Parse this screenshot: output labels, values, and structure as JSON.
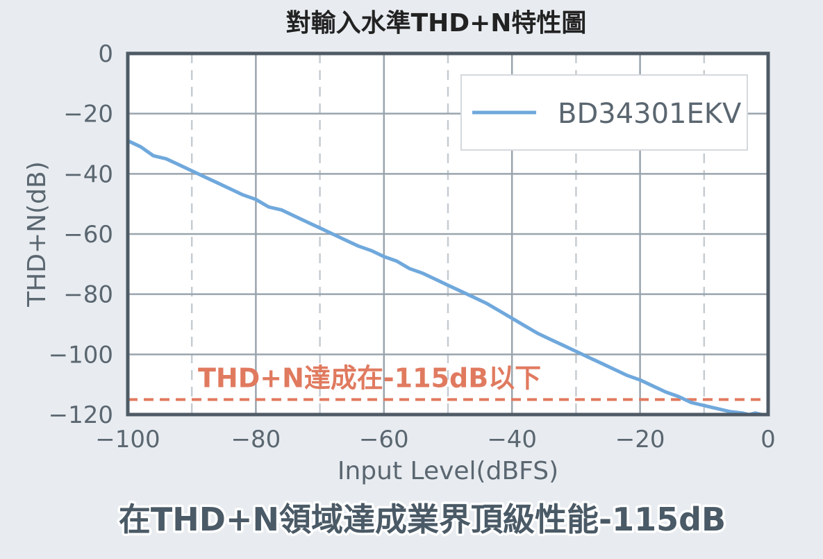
{
  "chart_data": {
    "type": "line",
    "title": "對輸入水準THD+N特性圖",
    "xlabel": "Input Level(dBFS)",
    "ylabel": "THD+N(dB)",
    "xlim": [
      -100,
      0
    ],
    "ylim": [
      -120,
      0
    ],
    "x_ticks": [
      -100,
      -80,
      -60,
      -40,
      -20,
      0
    ],
    "y_ticks": [
      0,
      -20,
      -40,
      -60,
      -80,
      -100,
      -120
    ],
    "x_tick_labels": [
      "−100",
      "−80",
      "−60",
      "−40",
      "−20",
      "0"
    ],
    "y_tick_labels": [
      "0",
      "−20",
      "−40",
      "−60",
      "−80",
      "−100",
      "−120"
    ],
    "grid": true,
    "legend_position": "top-right",
    "series": [
      {
        "name": "BD34301EKV",
        "color": "#6fa8dc",
        "x": [
          -100,
          -98,
          -96,
          -94,
          -92,
          -90,
          -88,
          -86,
          -84,
          -82,
          -80,
          -78,
          -76,
          -74,
          -72,
          -70,
          -68,
          -66,
          -64,
          -62,
          -60,
          -58,
          -56,
          -54,
          -52,
          -50,
          -48,
          -46,
          -44,
          -42,
          -40,
          -38,
          -36,
          -34,
          -32,
          -30,
          -28,
          -26,
          -24,
          -22,
          -20,
          -18,
          -16,
          -14,
          -12,
          -10,
          -8,
          -6,
          -4,
          -3,
          -2,
          -1,
          0
        ],
        "y": [
          -29,
          -31,
          -34,
          -35,
          -37,
          -39,
          -41,
          -43,
          -45,
          -47,
          -48.5,
          -51,
          -52,
          -54,
          -56,
          -58,
          -60,
          -62,
          -64,
          -65.5,
          -67.5,
          -69,
          -71.5,
          -73,
          -75,
          -77,
          -79,
          -81,
          -83,
          -85.5,
          -88,
          -90.5,
          -93,
          -95,
          -97,
          -99,
          -101,
          -103,
          -105,
          -107,
          -108.5,
          -110.5,
          -112.5,
          -114,
          -116,
          -117,
          -118,
          -119,
          -119.5,
          -120,
          -119.5,
          -120,
          -120
        ]
      }
    ],
    "reference_lines": [
      {
        "y": -115,
        "label": "THD+N達成在-115dB以下",
        "color": "#e07a5f",
        "style": "dashed"
      }
    ]
  },
  "caption": "在THD+N領域達成業界頂級性能-115dB",
  "colors": {
    "background": "#e8ecf0",
    "plot_background": "#ffffff",
    "axis": "#4e5b66",
    "grid": "#9aa4ad",
    "text": "#5a6670",
    "series": "#6fa8dc",
    "reference": "#e07a5f"
  }
}
